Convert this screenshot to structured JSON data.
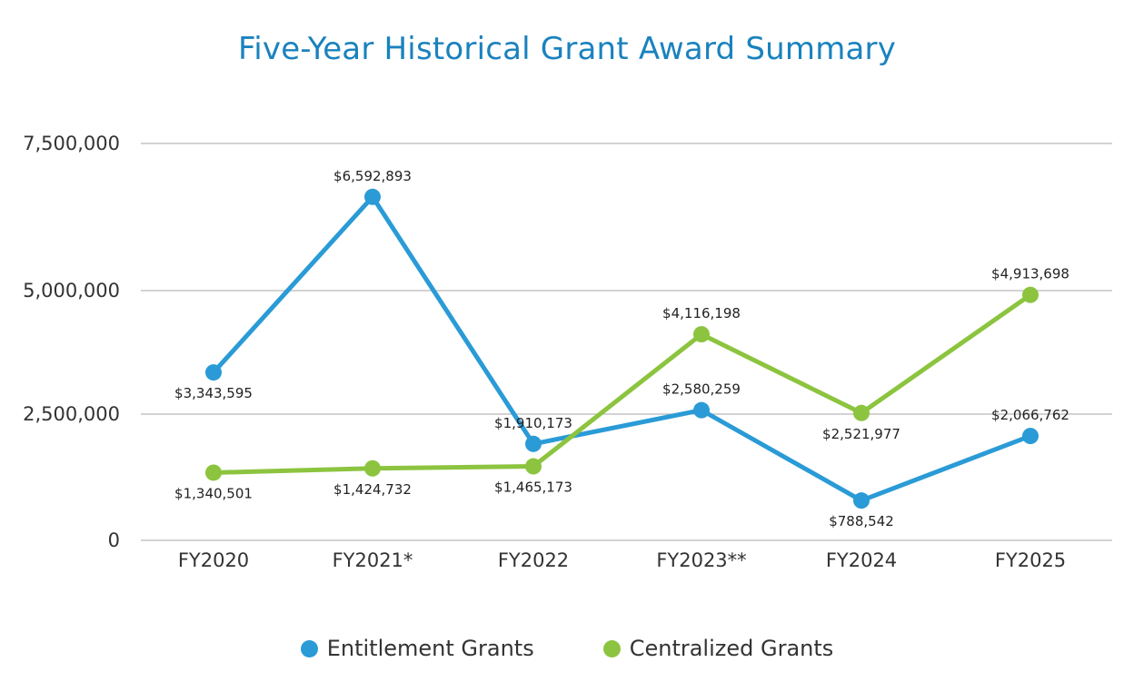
{
  "chart_data": {
    "type": "line",
    "title": "Five-Year Historical Grant Award Summary",
    "xlabel": "",
    "ylabel": "",
    "categories": [
      "FY2020",
      "FY2021*",
      "FY2022",
      "FY2023**",
      "FY2024",
      "FY2025"
    ],
    "yticks": [
      {
        "value": 0,
        "label": "0"
      },
      {
        "value": 2500000,
        "label": "2,500,000"
      },
      {
        "value": 5000000,
        "label": "5,000,000"
      },
      {
        "value": 7500000,
        "label": "7,500,000"
      }
    ],
    "ylim": [
      0,
      7500000
    ],
    "grid": true,
    "legend_position": "bottom",
    "series": [
      {
        "name": "Entitlement Grants",
        "color": "#2a9bd6",
        "values": [
          3343595,
          6592893,
          1910173,
          2580259,
          788542,
          2066762
        ],
        "labels": [
          "$3,343,595",
          "$6,592,893",
          "$1,910,173",
          "$2,580,259",
          "$788,542",
          "$2,066,762"
        ],
        "label_positions": [
          "below",
          "above",
          "above",
          "above",
          "below",
          "above"
        ]
      },
      {
        "name": "Centralized Grants",
        "color": "#8cc43f",
        "values": [
          1340501,
          1424732,
          1465173,
          4116198,
          2521977,
          4913698
        ],
        "labels": [
          "$1,340,501",
          "$1,424,732",
          "$1,465,173",
          "$4,116,198",
          "$2,521,977",
          "$4,913,698"
        ],
        "label_positions": [
          "below",
          "below",
          "below",
          "above",
          "below",
          "above"
        ]
      }
    ]
  }
}
